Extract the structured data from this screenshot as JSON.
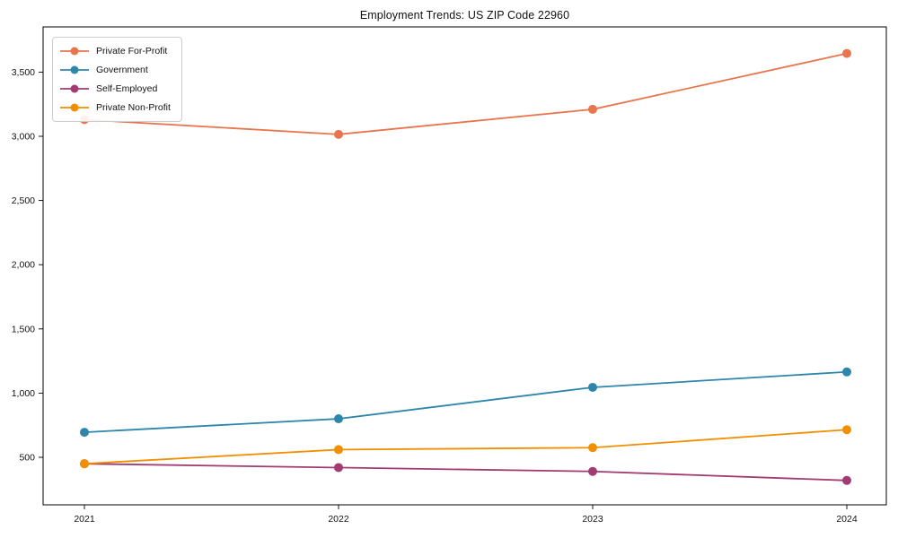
{
  "chart_data": {
    "type": "line",
    "title": "Employment Trends: US ZIP Code 22960",
    "x": [
      2021,
      2022,
      2023,
      2024
    ],
    "xtick_labels": [
      "2021",
      "2022",
      "2023",
      "2024"
    ],
    "series": [
      {
        "name": "Private For-Profit",
        "color": "#E8754D",
        "values": [
          3130,
          3015,
          3210,
          3645
        ]
      },
      {
        "name": "Government",
        "color": "#2E86AB",
        "values": [
          695,
          800,
          1045,
          1165
        ]
      },
      {
        "name": "Self-Employed",
        "color": "#A23B72",
        "values": [
          450,
          420,
          390,
          320
        ]
      },
      {
        "name": "Private Non-Profit",
        "color": "#F18F01",
        "values": [
          450,
          560,
          575,
          715
        ]
      }
    ],
    "xlabel": "",
    "ylabel": "",
    "ylim": [
      130,
      3852
    ],
    "yticks": [
      500,
      1000,
      1500,
      2000,
      2500,
      3000,
      3500
    ],
    "ytick_labels": [
      "500",
      "1,000",
      "1,500",
      "2,000",
      "2,500",
      "3,000",
      "3,500"
    ],
    "grid": false,
    "legend_position": "upper-left",
    "marker": "circle",
    "spine_color": "#000000"
  }
}
